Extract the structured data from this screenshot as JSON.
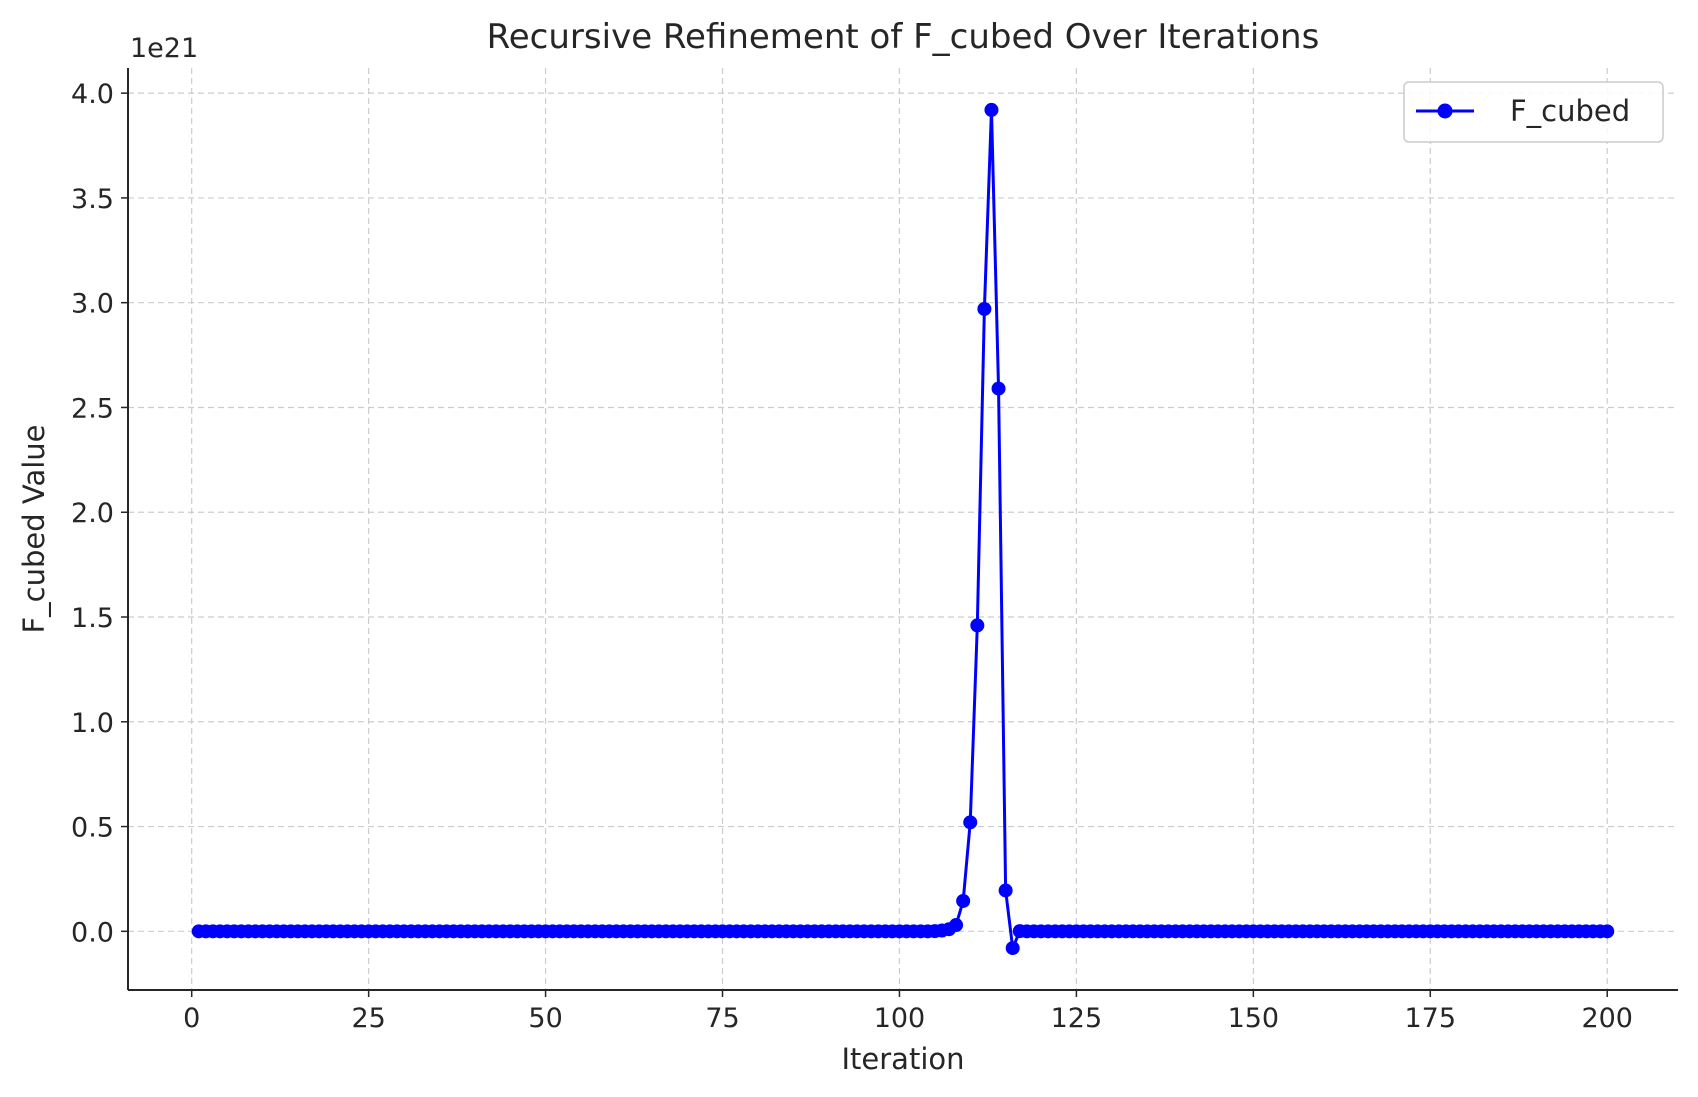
{
  "chart_data": {
    "type": "line",
    "title": "Recursive Refinement of F_cubed Over Iterations",
    "xlabel": "Iteration",
    "ylabel": "F_cubed Value",
    "y_offset_label": "1e21",
    "xlim": [
      -9,
      210
    ],
    "ylim": [
      -0.28,
      4.12
    ],
    "xticks": [
      0,
      25,
      50,
      75,
      100,
      125,
      150,
      175,
      200
    ],
    "xtick_labels": [
      "0",
      "25",
      "50",
      "75",
      "100",
      "125",
      "150",
      "175",
      "200"
    ],
    "yticks": [
      0.0,
      0.5,
      1.0,
      1.5,
      2.0,
      2.5,
      3.0,
      3.5,
      4.0
    ],
    "ytick_labels": [
      "0.0",
      "0.5",
      "1.0",
      "1.5",
      "2.0",
      "2.5",
      "3.0",
      "3.5",
      "4.0"
    ],
    "grid": true,
    "legend": {
      "position": "top-right",
      "entries": [
        "F_cubed"
      ]
    },
    "series": [
      {
        "name": "F_cubed",
        "color": "#0000ff",
        "marker": "circle",
        "x_range": [
          1,
          200
        ],
        "baseline_value": 0.0,
        "points": [
          {
            "x": 105,
            "y": 0.001
          },
          {
            "x": 106,
            "y": 0.004
          },
          {
            "x": 107,
            "y": 0.01
          },
          {
            "x": 108,
            "y": 0.03
          },
          {
            "x": 109,
            "y": 0.145
          },
          {
            "x": 110,
            "y": 0.52
          },
          {
            "x": 111,
            "y": 1.46
          },
          {
            "x": 112,
            "y": 2.97
          },
          {
            "x": 113,
            "y": 3.92
          },
          {
            "x": 114,
            "y": 2.59
          },
          {
            "x": 115,
            "y": 0.195
          },
          {
            "x": 116,
            "y": -0.08
          },
          {
            "x": 117,
            "y": 0.001
          }
        ]
      }
    ]
  }
}
